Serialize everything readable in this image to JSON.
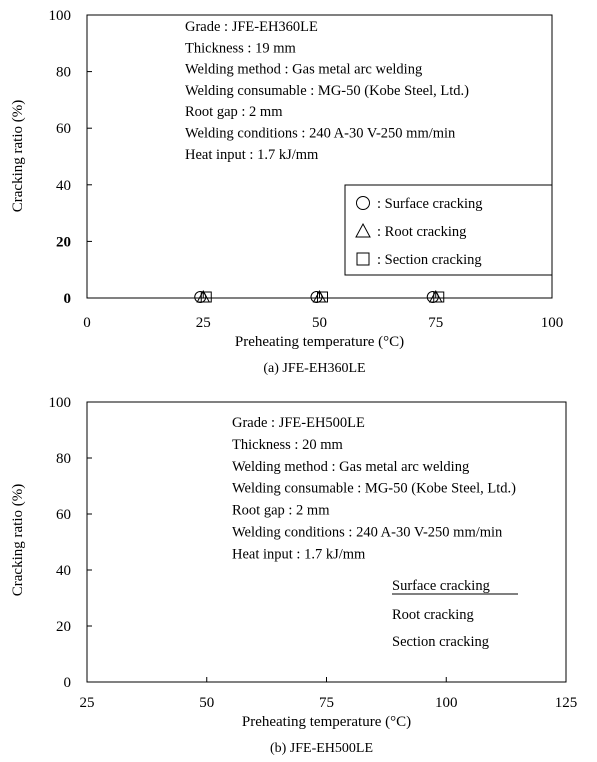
{
  "chart_data": [
    {
      "type": "scatter",
      "caption": "(a) JFE-EH360LE",
      "xlabel": "Preheating temperature (°C)",
      "ylabel": "Cracking ratio (%)",
      "xlim": [
        0,
        100
      ],
      "ylim": [
        0,
        100
      ],
      "x_ticks": [
        "0",
        "25",
        "50",
        "75",
        "100"
      ],
      "y_ticks": [
        "0",
        "20",
        "40",
        "60",
        "80",
        "100"
      ],
      "info_lines": [
        "Grade : JFE-EH360LE",
        "Thickness : 19 mm",
        "Welding method : Gas metal arc welding",
        "Welding consumable : MG-50 (Kobe Steel, Ltd.)",
        "Root gap : 2 mm",
        "Welding conditions : 240 A-30 V-250 mm/min",
        "Heat input : 1.7 kJ/mm"
      ],
      "legend_position": "bottom-right",
      "series": [
        {
          "name": ": Surface cracking",
          "marker": "circle",
          "x": [
            25,
            50,
            75
          ],
          "y": [
            0,
            0,
            0
          ]
        },
        {
          "name": ": Root cracking",
          "marker": "triangle",
          "x": [
            25,
            50,
            75
          ],
          "y": [
            0,
            0,
            0
          ]
        },
        {
          "name": ": Section cracking",
          "marker": "square",
          "x": [
            25,
            50,
            75
          ],
          "y": [
            0,
            0,
            0
          ]
        }
      ]
    },
    {
      "type": "scatter",
      "caption": "(b) JFE-EH500LE",
      "xlabel": "Preheating temperature (°C)",
      "ylabel": "Cracking ratio (%)",
      "xlim": [
        25,
        125
      ],
      "ylim": [
        0,
        100
      ],
      "x_ticks": [
        "25",
        "50",
        "75",
        "100",
        "125"
      ],
      "y_ticks": [
        "0",
        "20",
        "40",
        "60",
        "80",
        "100"
      ],
      "info_lines": [
        "Grade : JFE-EH500LE",
        "Thickness : 20 mm",
        "Welding method : Gas metal arc welding",
        "Welding consumable : MG-50 (Kobe Steel, Ltd.)",
        "Root gap : 2 mm",
        "Welding conditions : 240 A-30 V-250 mm/min",
        "Heat input : 1.7 kJ/mm"
      ],
      "legend_position": "right",
      "series": [
        {
          "name": "Surface cracking",
          "marker": "circle",
          "x": [],
          "y": []
        },
        {
          "name": "Root cracking",
          "marker": "triangle",
          "x": [],
          "y": []
        },
        {
          "name": "Section cracking",
          "marker": "square",
          "x": [],
          "y": []
        }
      ]
    }
  ]
}
